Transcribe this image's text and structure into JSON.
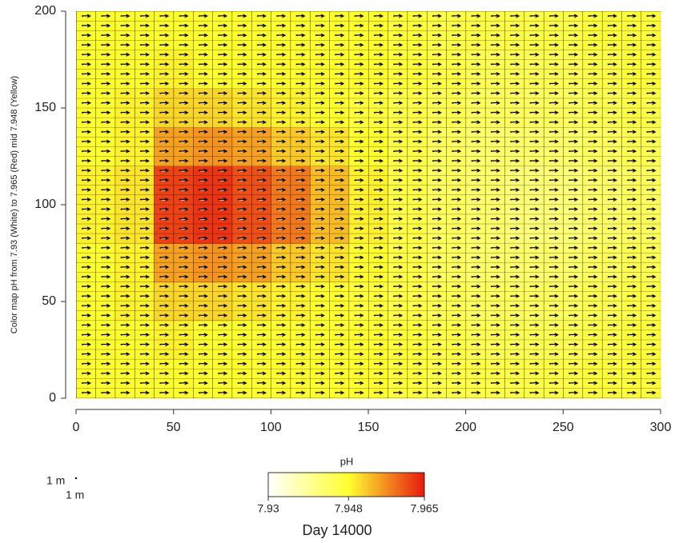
{
  "chart_data": {
    "type": "heatmap",
    "ylabel": "Color map pH from 7.93  (White) to 7.965  (Red) mid 7.948  (Yellow)",
    "footer": "Day 14000",
    "colorbar_title": "pH",
    "scale_labels": [
      "1 m",
      "1 m"
    ],
    "xlim": [
      0,
      300
    ],
    "ylim": [
      0,
      200
    ],
    "xticks": [
      0,
      50,
      100,
      150,
      200,
      250,
      300
    ],
    "yticks": [
      0,
      50,
      100,
      150,
      200
    ],
    "x": [
      10,
      30,
      50,
      70,
      90,
      110,
      130,
      150,
      170,
      190,
      210,
      230,
      250,
      270,
      290
    ],
    "y": [
      10,
      30,
      50,
      70,
      90,
      110,
      130,
      150,
      170,
      190
    ],
    "z": [
      [
        7.948,
        7.948,
        7.948,
        7.948,
        7.948,
        7.948,
        7.948,
        7.948,
        7.947,
        7.946,
        7.946,
        7.946,
        7.946,
        7.947,
        7.947
      ],
      [
        7.948,
        7.948,
        7.949,
        7.948,
        7.948,
        7.948,
        7.948,
        7.948,
        7.947,
        7.946,
        7.945,
        7.945,
        7.945,
        7.946,
        7.947
      ],
      [
        7.948,
        7.949,
        7.951,
        7.951,
        7.95,
        7.949,
        7.948,
        7.947,
        7.946,
        7.945,
        7.944,
        7.944,
        7.944,
        7.945,
        7.946
      ],
      [
        7.948,
        7.949,
        7.955,
        7.956,
        7.955,
        7.952,
        7.95,
        7.948,
        7.946,
        7.944,
        7.943,
        7.943,
        7.943,
        7.944,
        7.945
      ],
      [
        7.949,
        7.95,
        7.962,
        7.963,
        7.961,
        7.958,
        7.953,
        7.949,
        7.946,
        7.944,
        7.943,
        7.942,
        7.942,
        7.943,
        7.944
      ],
      [
        7.949,
        7.95,
        7.962,
        7.963,
        7.961,
        7.958,
        7.953,
        7.949,
        7.946,
        7.944,
        7.943,
        7.942,
        7.942,
        7.943,
        7.944
      ],
      [
        7.948,
        7.949,
        7.955,
        7.956,
        7.955,
        7.952,
        7.95,
        7.948,
        7.946,
        7.944,
        7.943,
        7.943,
        7.943,
        7.944,
        7.945
      ],
      [
        7.948,
        7.949,
        7.951,
        7.951,
        7.95,
        7.949,
        7.948,
        7.947,
        7.946,
        7.945,
        7.944,
        7.944,
        7.944,
        7.945,
        7.946
      ],
      [
        7.948,
        7.948,
        7.949,
        7.948,
        7.948,
        7.948,
        7.948,
        7.948,
        7.947,
        7.946,
        7.945,
        7.945,
        7.945,
        7.946,
        7.947
      ],
      [
        7.948,
        7.948,
        7.948,
        7.948,
        7.948,
        7.948,
        7.948,
        7.948,
        7.947,
        7.946,
        7.946,
        7.946,
        7.946,
        7.947,
        7.947
      ]
    ],
    "colormap": {
      "min": 7.93,
      "mid": 7.948,
      "max": 7.965,
      "colors": [
        "#ffffff",
        "#ffff30",
        "#e8190f"
      ]
    },
    "colorbar_ticks": [
      7.93,
      7.948,
      7.965
    ]
  }
}
